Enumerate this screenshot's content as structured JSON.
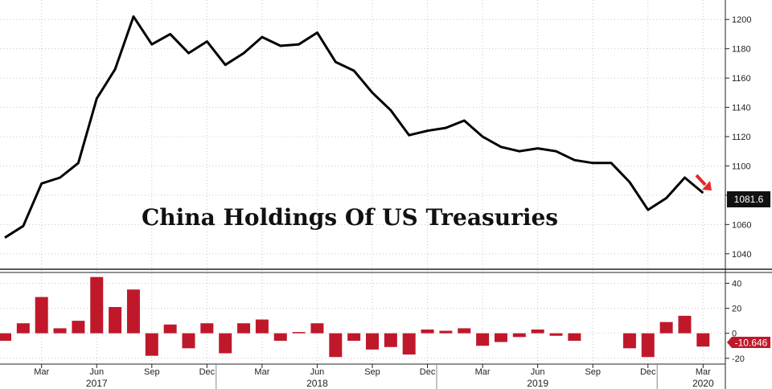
{
  "chart_data": [
    {
      "type": "line",
      "title": "China Holdings Of US Treasuries",
      "x": [
        "2017-01",
        "2017-02",
        "2017-03",
        "2017-04",
        "2017-05",
        "2017-06",
        "2017-07",
        "2017-08",
        "2017-09",
        "2017-10",
        "2017-11",
        "2017-12",
        "2018-01",
        "2018-02",
        "2018-03",
        "2018-04",
        "2018-05",
        "2018-06",
        "2018-07",
        "2018-08",
        "2018-09",
        "2018-10",
        "2018-11",
        "2018-12",
        "2019-01",
        "2019-02",
        "2019-03",
        "2019-04",
        "2019-05",
        "2019-06",
        "2019-07",
        "2019-08",
        "2019-09",
        "2019-10",
        "2019-11",
        "2019-12",
        "2020-01",
        "2020-02",
        "2020-03"
      ],
      "series": [
        {
          "values": [
            1051,
            1059,
            1088,
            1092,
            1102,
            1146,
            1166,
            1202,
            1183,
            1190,
            1177,
            1185,
            1169,
            1177,
            1188,
            1182,
            1183,
            1191,
            1171,
            1165,
            1150,
            1138,
            1121,
            1124,
            1126,
            1131,
            1120,
            1113,
            1110,
            1112,
            1110,
            1104,
            1102,
            1102,
            1089,
            1070,
            1078,
            1092,
            1081.6
          ]
        }
      ],
      "ylim": [
        1030,
        1210
      ],
      "y_ticks": [
        "1040",
        "1060",
        "1080",
        "1100",
        "1120",
        "1140",
        "1160",
        "1180",
        "1200"
      ],
      "last_value_label": "1081.6",
      "color": "#000000"
    },
    {
      "type": "bar",
      "x": [
        "2017-01",
        "2017-02",
        "2017-03",
        "2017-04",
        "2017-05",
        "2017-06",
        "2017-07",
        "2017-08",
        "2017-09",
        "2017-10",
        "2017-11",
        "2017-12",
        "2018-01",
        "2018-02",
        "2018-03",
        "2018-04",
        "2018-05",
        "2018-06",
        "2018-07",
        "2018-08",
        "2018-09",
        "2018-10",
        "2018-11",
        "2018-12",
        "2019-01",
        "2019-02",
        "2019-03",
        "2019-04",
        "2019-05",
        "2019-06",
        "2019-07",
        "2019-08",
        "2019-09",
        "2019-10",
        "2019-11",
        "2019-12",
        "2020-01",
        "2020-02",
        "2020-03"
      ],
      "values": [
        -6,
        8,
        29,
        4,
        10,
        45,
        21,
        35,
        -18,
        7,
        -12,
        8,
        -16,
        8,
        11,
        -6,
        1,
        8,
        -19,
        -6,
        -13,
        -11,
        -17,
        3,
        2,
        4,
        -10,
        -7,
        -3,
        3,
        -2,
        -6,
        0,
        0,
        -12,
        -19,
        9,
        14,
        -10.646
      ],
      "ylim": [
        -24,
        48
      ],
      "y_ticks": [
        "-20",
        "0",
        "20",
        "40"
      ],
      "last_value_label": "-10.646",
      "color": "#c0182b"
    }
  ],
  "x_axis": {
    "month_labels": [
      "Mar",
      "Jun",
      "Sep",
      "Dec",
      "Mar",
      "Jun",
      "Sep",
      "Dec",
      "Mar",
      "Jun",
      "Sep",
      "Dec",
      "Mar"
    ],
    "month_label_index": [
      2,
      5,
      8,
      11,
      14,
      17,
      20,
      23,
      26,
      29,
      32,
      35,
      38
    ],
    "years": [
      {
        "label": "2017",
        "index": 5
      },
      {
        "label": "2018",
        "index": 17
      },
      {
        "label": "2019",
        "index": 29
      },
      {
        "label": "2020",
        "index": 38
      }
    ]
  },
  "colors": {
    "accent_red": "#e8262b",
    "badge_dark": "#111111"
  },
  "icons": {
    "arrow": "down-right-arrow-icon"
  }
}
